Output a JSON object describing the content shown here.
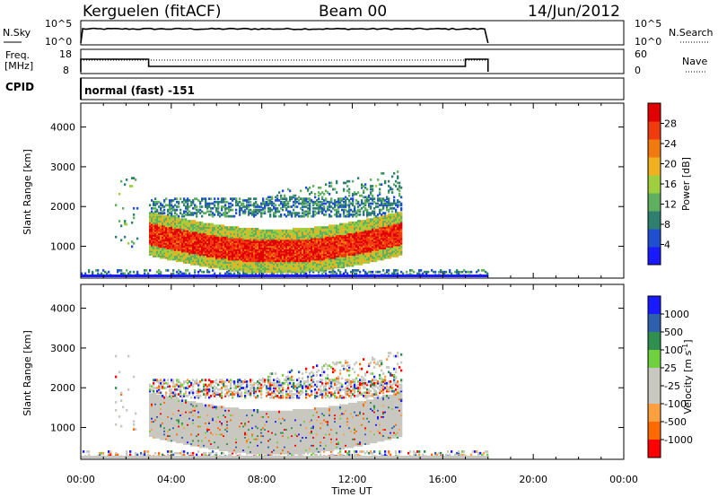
{
  "header": {
    "station": "Kerguelen (fitACF)",
    "beam": "Beam 00",
    "date": "14/Jun/2012"
  },
  "noise_panel": {
    "left_label": "N.Sky",
    "left_ticks": [
      "10^5",
      "10^0"
    ],
    "right_ticks": [
      "10^5",
      "10^0"
    ],
    "right_label": "N.Search"
  },
  "freq_panel": {
    "left_label_1": "Freq.",
    "left_label_2": "[MHz]",
    "left_ticks": [
      "18",
      "8"
    ],
    "right_ticks": [
      "60",
      "0"
    ],
    "right_label": "Nave"
  },
  "cpid": {
    "label": "CPID",
    "value": "normal (fast) -151"
  },
  "colors": {
    "power": [
      "#1a1aff",
      "#1f4fcf",
      "#2f7f6f",
      "#5faf5f",
      "#9fcf3f",
      "#f0b020",
      "#f07a10",
      "#f03a10",
      "#e00000"
    ],
    "velocity": [
      "#ff0000",
      "#ff6a00",
      "#ffa040",
      "#c8c8c0",
      "#c8c8c0",
      "#6fd040",
      "#2f8f4f",
      "#2f5faf",
      "#1a1aff"
    ]
  },
  "chart_data": [
    {
      "type": "heatmap",
      "title": "Power",
      "ylabel": "Slant Range [km]",
      "xlabel": "",
      "x_ticks": [
        "00:00",
        "04:00",
        "08:00",
        "12:00",
        "16:00",
        "20:00",
        "00:00"
      ],
      "y_ticks": [
        1000,
        2000,
        3000,
        4000
      ],
      "ylim": [
        200,
        4600
      ],
      "colorbar_label": "Power [dB]",
      "colorbar_ticks": [
        4,
        8,
        12,
        16,
        20,
        24,
        28
      ],
      "colorbar_range": [
        0,
        32
      ],
      "data_extent_hours": [
        0.0,
        18.0
      ],
      "description_bands": [
        {
          "hours": [
            3.0,
            14.2
          ],
          "range_km": [
            700,
            1700
          ],
          "level_db": 26
        },
        {
          "hours": [
            3.0,
            14.2
          ],
          "range_km": [
            1800,
            2200
          ],
          "level_db": 10
        },
        {
          "hours": [
            8.0,
            14.2
          ],
          "range_km": [
            2200,
            3000
          ],
          "level_db": 8
        }
      ]
    },
    {
      "type": "heatmap",
      "title": "Velocity",
      "ylabel": "Slant Range [km]",
      "xlabel": "Time UT",
      "x_ticks": [
        "00:00",
        "04:00",
        "08:00",
        "12:00",
        "16:00",
        "20:00",
        "00:00"
      ],
      "y_ticks": [
        1000,
        2000,
        3000,
        4000
      ],
      "ylim": [
        200,
        4600
      ],
      "colorbar_label": "Velocity [m s",
      "colorbar_label_sup": "-1",
      "colorbar_label_end": "]",
      "colorbar_ticks": [
        "1000",
        "500",
        "100",
        "25",
        "-25",
        "-100",
        "-500",
        "-1000"
      ],
      "data_extent_hours": [
        0.0,
        18.0
      ]
    }
  ]
}
